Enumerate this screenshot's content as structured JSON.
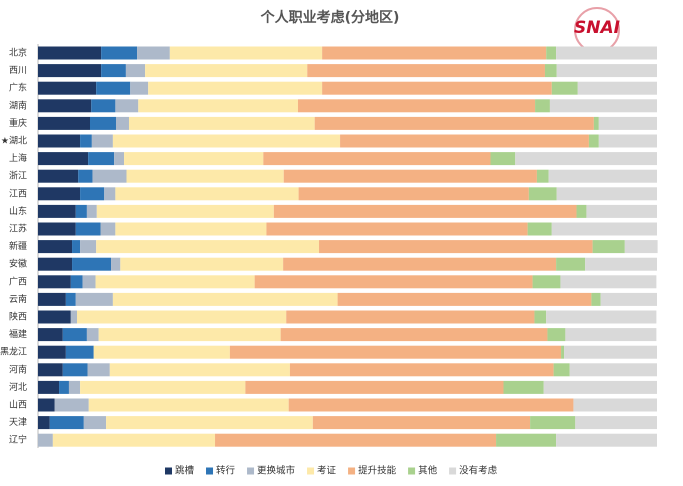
{
  "chart_data": {
    "type": "stacked-bar-horizontal",
    "title": "个人职业考虑(分地区)",
    "logo": "SNAI",
    "xlim": [
      0,
      100
    ],
    "legend": "bottom",
    "categories": [
      "北京",
      "西川",
      "广东",
      "湖南",
      "重庆",
      "★湖北",
      "上海",
      "浙江",
      "江西",
      "山东",
      "江苏",
      "新疆",
      "安徽",
      "广西",
      "云南",
      "陕西",
      "福建",
      "黑龙江",
      "河南",
      "河北",
      "山西",
      "天津",
      "辽宁"
    ],
    "series": [
      {
        "name": "跳槽",
        "color": "#1f3864",
        "values": [
          10.2,
          10.2,
          9.4,
          8.6,
          8.4,
          6.8,
          8.1,
          6.5,
          6.8,
          6.1,
          6.1,
          5.5,
          5.5,
          5.3,
          4.5,
          5.3,
          4.0,
          4.5,
          4.0,
          3.4,
          2.7,
          1.9,
          0
        ]
      },
      {
        "name": "转行",
        "color": "#2e75b6",
        "values": [
          5.8,
          4.0,
          5.5,
          3.9,
          4.2,
          1.9,
          4.2,
          2.3,
          3.9,
          1.8,
          4.0,
          1.3,
          6.3,
          1.9,
          1.6,
          0,
          3.9,
          4.5,
          4.0,
          1.6,
          0,
          5.5,
          0
        ]
      },
      {
        "name": "更换城市",
        "color": "#adb9ca",
        "values": [
          5.3,
          3.1,
          2.9,
          3.7,
          2.1,
          3.4,
          1.6,
          5.5,
          1.8,
          1.6,
          2.4,
          2.6,
          1.5,
          2.1,
          6.0,
          1.0,
          1.9,
          0,
          3.6,
          1.8,
          5.5,
          3.6,
          2.4
        ]
      },
      {
        "name": "考证",
        "color": "#fde9a9",
        "values": [
          24.6,
          26.2,
          28.1,
          25.8,
          30.0,
          36.7,
          22.5,
          25.4,
          29.6,
          28.6,
          24.4,
          36.0,
          26.3,
          25.7,
          36.3,
          33.8,
          29.4,
          22.0,
          29.1,
          26.7,
          32.3,
          33.4,
          26.2
        ]
      },
      {
        "name": "提升技能",
        "color": "#f4b183",
        "values": [
          36.2,
          38.4,
          37.1,
          38.3,
          45.1,
          40.2,
          36.7,
          40.9,
          37.2,
          48.9,
          42.2,
          44.2,
          44.1,
          44.9,
          41.0,
          40.1,
          43.1,
          53.5,
          42.6,
          41.7,
          46.0,
          35.1,
          45.4
        ]
      },
      {
        "name": "其他",
        "color": "#a9d18e",
        "values": [
          1.6,
          1.9,
          4.2,
          2.4,
          0.8,
          1.6,
          4.0,
          1.9,
          4.5,
          1.6,
          3.9,
          5.2,
          4.7,
          4.5,
          1.5,
          1.9,
          2.9,
          0.5,
          2.6,
          6.5,
          0,
          7.3,
          9.7
        ]
      },
      {
        "name": "没有考虑",
        "color": "#d9d9d9",
        "values": [
          16.3,
          16.2,
          12.8,
          17.3,
          9.4,
          9.4,
          22.9,
          17.5,
          16.2,
          11.4,
          17.0,
          5.3,
          11.6,
          15.5,
          9.1,
          17.8,
          14.7,
          15.0,
          14.1,
          18.3,
          13.5,
          13.2,
          16.3
        ]
      }
    ]
  }
}
